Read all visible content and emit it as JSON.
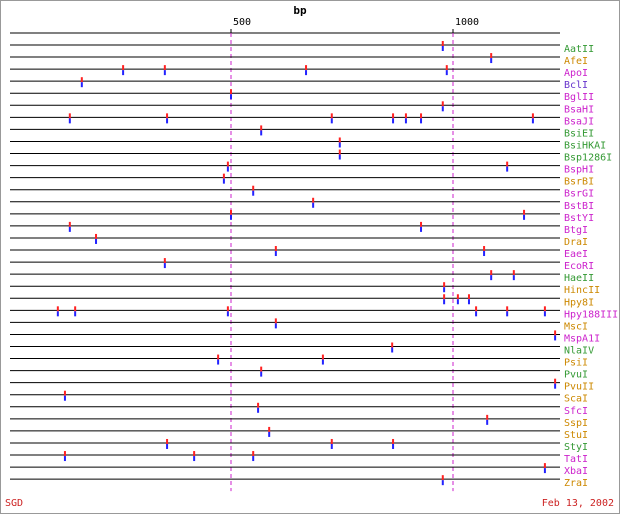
{
  "chart_data": {
    "type": "strip",
    "title": "bp",
    "footer_left": "SGD",
    "footer_right": "Feb 13, 2002",
    "xlim": [
      0,
      1241
    ],
    "xticks": [
      500,
      1000
    ],
    "grid": true,
    "series": [
      {
        "name": "AatII",
        "color": "#339933",
        "values": [
          977
        ]
      },
      {
        "name": "AfeI",
        "color": "#cc8800",
        "values": [
          1086
        ]
      },
      {
        "name": "ApoI",
        "color": "#cc22cc",
        "values": [
          257,
          351,
          669,
          986
        ]
      },
      {
        "name": "BclI",
        "color": "#6633cc",
        "values": [
          164
        ]
      },
      {
        "name": "BglII",
        "color": "#cc22cc",
        "values": [
          500
        ]
      },
      {
        "name": "BsaHI",
        "color": "#cc22cc",
        "values": [
          977
        ]
      },
      {
        "name": "BsaJI",
        "color": "#cc22cc",
        "values": [
          137,
          356,
          727,
          865,
          894,
          928,
          1180
        ]
      },
      {
        "name": "BsiEI",
        "color": "#339933",
        "values": [
          568
        ]
      },
      {
        "name": "BsiHKAI",
        "color": "#339933",
        "values": [
          745
        ]
      },
      {
        "name": "Bsp1286I",
        "color": "#339933",
        "values": [
          745
        ]
      },
      {
        "name": "BspHI",
        "color": "#cc22cc",
        "values": [
          493,
          1122
        ]
      },
      {
        "name": "BsrBI",
        "color": "#cc8800",
        "values": [
          484
        ]
      },
      {
        "name": "BsrGI",
        "color": "#cc22cc",
        "values": [
          550
        ]
      },
      {
        "name": "BstBI",
        "color": "#cc22cc",
        "values": [
          685
        ]
      },
      {
        "name": "BstYI",
        "color": "#cc22cc",
        "values": [
          500,
          1160
        ]
      },
      {
        "name": "BtgI",
        "color": "#cc22cc",
        "values": [
          137,
          928
        ]
      },
      {
        "name": "DraI",
        "color": "#cc8800",
        "values": [
          196
        ]
      },
      {
        "name": "EaeI",
        "color": "#cc22cc",
        "values": [
          601,
          1070
        ]
      },
      {
        "name": "EcoRI",
        "color": "#cc22cc",
        "values": [
          351
        ]
      },
      {
        "name": "HaeII",
        "color": "#339933",
        "values": [
          1086,
          1137
        ]
      },
      {
        "name": "HincII",
        "color": "#cc8800",
        "values": [
          980
        ]
      },
      {
        "name": "Hpy8I",
        "color": "#cc8800",
        "values": [
          980,
          1011,
          1036
        ]
      },
      {
        "name": "Hpy188III",
        "color": "#cc22cc",
        "values": [
          110,
          149,
          493,
          1052,
          1122,
          1207
        ]
      },
      {
        "name": "MscI",
        "color": "#cc8800",
        "values": [
          601
        ]
      },
      {
        "name": "MspA1I",
        "color": "#cc22cc",
        "values": [
          1230
        ]
      },
      {
        "name": "NlaIV",
        "color": "#339933",
        "values": [
          863
        ]
      },
      {
        "name": "PsiI",
        "color": "#cc8800",
        "values": [
          471,
          707
        ]
      },
      {
        "name": "PvuI",
        "color": "#339933",
        "values": [
          568
        ]
      },
      {
        "name": "PvuII",
        "color": "#cc8800",
        "values": [
          1230
        ]
      },
      {
        "name": "ScaI",
        "color": "#cc8800",
        "values": [
          126
        ]
      },
      {
        "name": "SfcI",
        "color": "#cc22cc",
        "values": [
          561
        ]
      },
      {
        "name": "SspI",
        "color": "#cc8800",
        "values": [
          1077
        ]
      },
      {
        "name": "StuI",
        "color": "#cc8800",
        "values": [
          586
        ]
      },
      {
        "name": "StyI",
        "color": "#339933",
        "values": [
          356,
          727,
          865
        ]
      },
      {
        "name": "TatI",
        "color": "#cc22cc",
        "values": [
          126,
          417,
          550
        ]
      },
      {
        "name": "XbaI",
        "color": "#cc22cc",
        "values": [
          1207
        ]
      },
      {
        "name": "ZraI",
        "color": "#cc8800",
        "values": [
          977
        ]
      }
    ]
  }
}
